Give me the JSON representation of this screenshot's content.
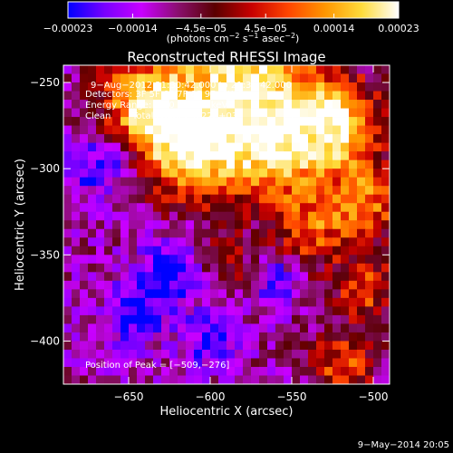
{
  "chart_data": {
    "type": "heatmap",
    "title": "Reconstructed RHESSI Image",
    "xlabel": "Heliocentric X (arcsec)",
    "ylabel": "Heliocentric Y (arcsec)",
    "xlim": [
      -690,
      -490
    ],
    "ylim": [
      -425,
      -240
    ],
    "x_ticks": [
      -650,
      -600,
      -550,
      -500
    ],
    "x_tick_labels": [
      "−650",
      "−600",
      "−550",
      "−500"
    ],
    "y_ticks": [
      -250,
      -300,
      -350,
      -400
    ],
    "y_tick_labels": [
      "−250",
      "−300",
      "−350",
      "−400"
    ],
    "colorbar": {
      "min": -0.00023,
      "max": 0.00023,
      "ticks": [
        -0.00023,
        -0.00014,
        -4.5e-05,
        4.5e-05,
        0.00014,
        0.00023
      ],
      "tick_labels": [
        "−0.00023",
        "−0.00014",
        "−4.5e−05",
        "4.5e−05",
        "0.00014",
        "0.00023"
      ],
      "unit_label_parts": [
        "(photons cm",
        "−2",
        " s",
        "−1",
        " asec",
        "−2",
        ")"
      ],
      "colors": [
        "#0000ff",
        "#7800ff",
        "#c800ff",
        "#8a0f6e",
        "#5a0000",
        "#c80000",
        "#ff4600",
        "#ff9600",
        "#ffdc3c",
        "#ffffff"
      ]
    },
    "annotations": {
      "time_range": "9−Aug−2012 21:30:42.000 to 21:36:42.000",
      "detectors": "Detectors: 3F 5F 6F 7F 8F 9F, Att 0",
      "energy_range": "Energy Range: 12.0 − 25.0 keV",
      "method": "Clean",
      "total_counts": "Total counts: 5.22E+03",
      "peak_position": "Position of Peak = [−509,−276]"
    },
    "grid": false,
    "intensity_grid": {
      "cols": 40,
      "rows": 37,
      "cell_arcsec": 5,
      "x0": -690,
      "y0": -240,
      "bright_ridges": [
        {
          "x": -575,
          "y": -245,
          "sigma": 30,
          "amp": 1.0
        },
        {
          "x": -640,
          "y": -265,
          "sigma": 22,
          "amp": 0.9
        },
        {
          "x": -610,
          "y": -290,
          "sigma": 22,
          "amp": 0.85
        },
        {
          "x": -560,
          "y": -290,
          "sigma": 20,
          "amp": 0.8
        },
        {
          "x": -520,
          "y": -275,
          "sigma": 18,
          "amp": 0.95
        },
        {
          "x": -505,
          "y": -320,
          "sigma": 16,
          "amp": 0.7
        },
        {
          "x": -540,
          "y": -335,
          "sigma": 15,
          "amp": 0.6
        },
        {
          "x": -505,
          "y": -370,
          "sigma": 14,
          "amp": 0.55
        },
        {
          "x": -520,
          "y": -415,
          "sigma": 14,
          "amp": 0.6
        },
        {
          "x": -590,
          "y": -355,
          "sigma": 12,
          "amp": 0.35
        }
      ],
      "dark_regions": [
        {
          "x": -665,
          "y": -295,
          "sigma": 15,
          "amp": -0.55
        },
        {
          "x": -625,
          "y": -360,
          "sigma": 14,
          "amp": -0.5
        },
        {
          "x": -645,
          "y": -385,
          "sigma": 12,
          "amp": -0.45
        },
        {
          "x": -560,
          "y": -365,
          "sigma": 10,
          "amp": -0.4
        },
        {
          "x": -600,
          "y": -400,
          "sigma": 11,
          "amp": -0.4
        }
      ]
    }
  },
  "footer": {
    "date_stamp": "9−May−2014 20:05"
  }
}
